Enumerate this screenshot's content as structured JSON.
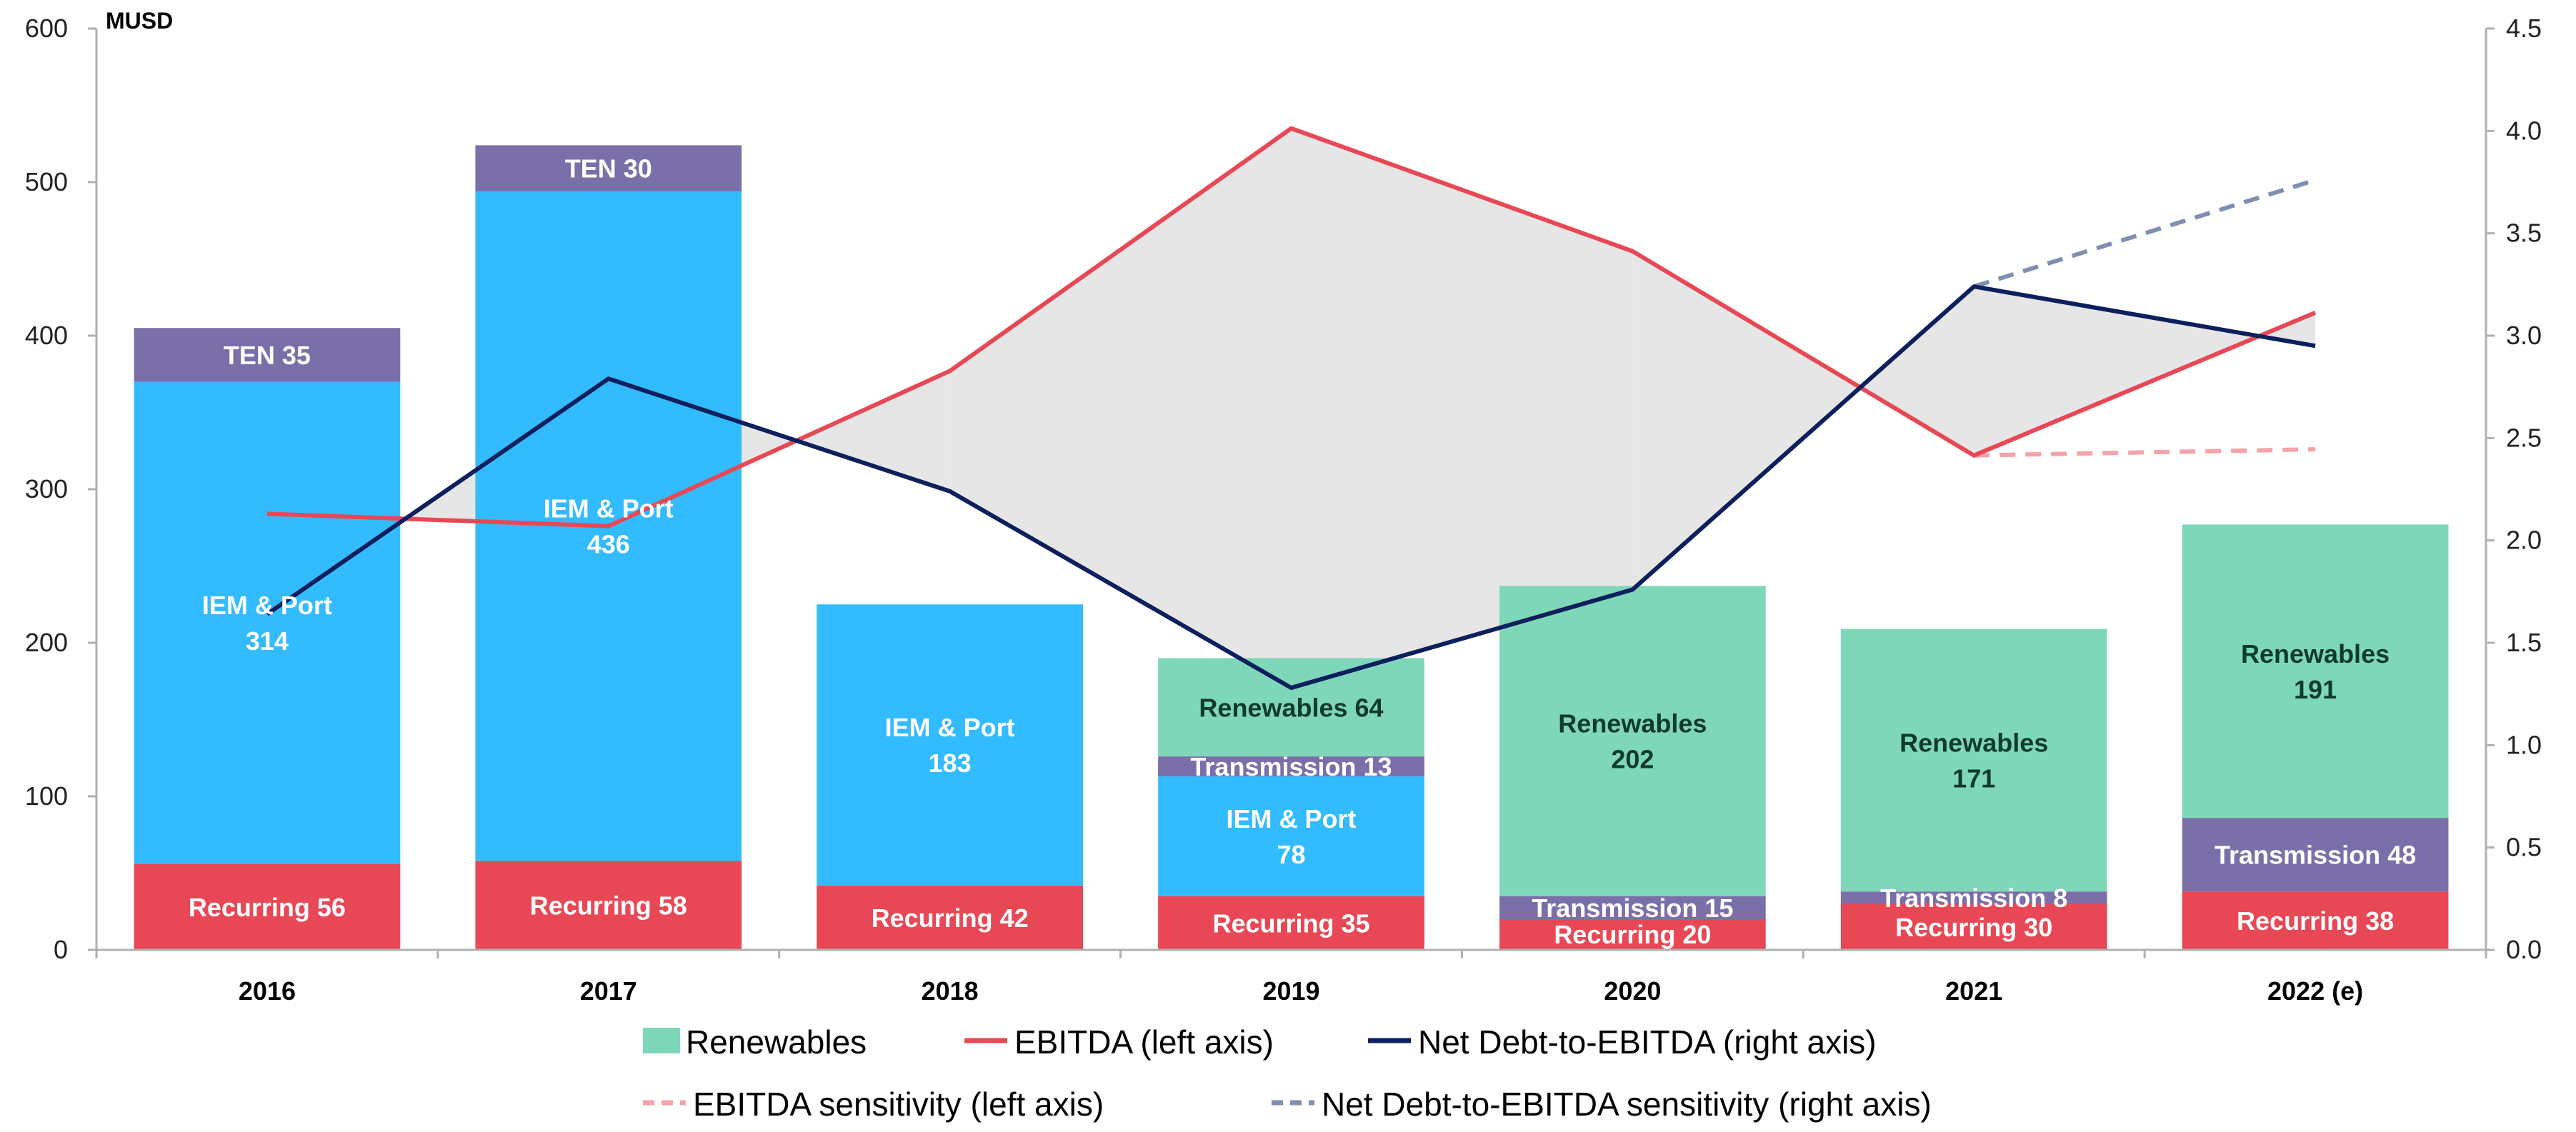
{
  "chart_data": {
    "type": "bar",
    "unit_label": "MUSD",
    "categories": [
      "2016",
      "2017",
      "2018",
      "2019",
      "2020",
      "2021",
      "2022 (e)"
    ],
    "ylim_left": [
      0,
      600
    ],
    "left_ticks": [
      "0",
      "100",
      "200",
      "300",
      "400",
      "500",
      "600"
    ],
    "ylim_right": [
      0,
      4.5
    ],
    "right_ticks": [
      "0.0",
      "0.5",
      "1.0",
      "1.5",
      "2.0",
      "2.5",
      "3.0",
      "3.5",
      "4.0",
      "4.5"
    ],
    "stack_order": [
      "Recurring",
      "IEM & Port",
      "Transmission",
      "TEN",
      "Renewables"
    ],
    "colors": {
      "Recurring": "#e84855",
      "IEM & Port": "#33bbff",
      "Transmission": "#7b6faa",
      "TEN": "#7b6faa",
      "Renewables": "#7fd7b9",
      "ebitda": "#e84855",
      "net_debt": "#0d1f5c",
      "ebitda_sens": "#f4a3aa",
      "net_debt_sens": "#7f8fb0",
      "shade": "#e3e3e3"
    },
    "bars": [
      {
        "category": "2016",
        "segments": [
          {
            "name": "Recurring",
            "value": 56,
            "label": "Recurring  56"
          },
          {
            "name": "IEM & Port",
            "value": 314,
            "label": "IEM & Port\n314"
          },
          {
            "name": "TEN",
            "value": 35,
            "label": "TEN  35"
          }
        ]
      },
      {
        "category": "2017",
        "segments": [
          {
            "name": "Recurring",
            "value": 58,
            "label": "Recurring  58"
          },
          {
            "name": "IEM & Port",
            "value": 436,
            "label": "IEM & Port\n436"
          },
          {
            "name": "TEN",
            "value": 30,
            "label": "TEN  30"
          }
        ]
      },
      {
        "category": "2018",
        "segments": [
          {
            "name": "Recurring",
            "value": 42,
            "label": "Recurring  42"
          },
          {
            "name": "IEM & Port",
            "value": 183,
            "label": "IEM & Port\n183"
          }
        ]
      },
      {
        "category": "2019",
        "segments": [
          {
            "name": "Recurring",
            "value": 35,
            "label": "Recurring 35"
          },
          {
            "name": "IEM & Port",
            "value": 78,
            "label": "IEM & Port\n78"
          },
          {
            "name": "Transmission",
            "value": 13,
            "label": "Transmission 13"
          },
          {
            "name": "Renewables",
            "value": 64,
            "label": "Renewables  64"
          }
        ]
      },
      {
        "category": "2020",
        "segments": [
          {
            "name": "Recurring",
            "value": 20,
            "label": "Recurring 20"
          },
          {
            "name": "Transmission",
            "value": 15,
            "label": "Transmission 15"
          },
          {
            "name": "Renewables",
            "value": 202,
            "label": "Renewables\n202"
          }
        ]
      },
      {
        "category": "2021",
        "segments": [
          {
            "name": "Recurring",
            "value": 30,
            "label": "Recurring 30"
          },
          {
            "name": "Transmission",
            "value": 8,
            "label": "Transmission 8"
          },
          {
            "name": "Renewables",
            "value": 171,
            "label": "Renewables\n171"
          }
        ]
      },
      {
        "category": "2022 (e)",
        "segments": [
          {
            "name": "Recurring",
            "value": 38,
            "label": "Recurring 38"
          },
          {
            "name": "Transmission",
            "value": 48,
            "label": "Transmission  48"
          },
          {
            "name": "Renewables",
            "value": 191,
            "label": "Renewables\n191"
          }
        ]
      }
    ],
    "ebitda": [
      284,
      276,
      377,
      535,
      455,
      322,
      415
    ],
    "ebitda_sensitivity": {
      "categories": [
        "2021",
        "2022 (e)"
      ],
      "values": [
        322,
        326
      ]
    },
    "net_debt_to_ebitda": [
      1.64,
      2.79,
      2.24,
      1.28,
      1.76,
      3.24,
      2.95
    ],
    "net_debt_to_ebitda_sensitivity": {
      "categories": [
        "2021",
        "2022 (e)"
      ],
      "values": [
        3.24,
        3.76
      ]
    },
    "legend": [
      {
        "key": "renewables",
        "label": "Renewables"
      },
      {
        "key": "ebitda",
        "label": "EBITDA (left axis)"
      },
      {
        "key": "net_debt",
        "label": "Net Debt-to-EBITDA (right axis)"
      },
      {
        "key": "ebitda_sens",
        "label": "EBITDA sensitivity (left axis)"
      },
      {
        "key": "net_debt_sens",
        "label": "Net Debt-to-EBITDA sensitivity (right axis)"
      }
    ],
    "legend_position": "bottom"
  }
}
